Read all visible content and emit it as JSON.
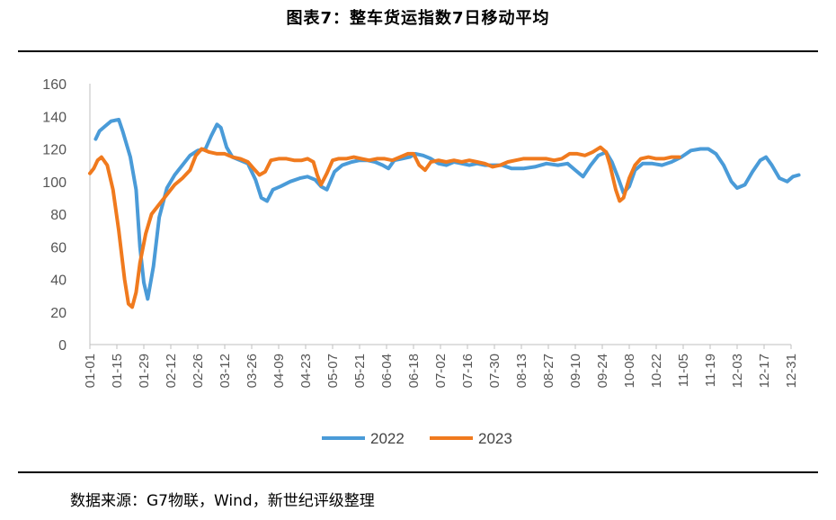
{
  "title": "图表7：整车货运指数7日移动平均",
  "source": "数据来源：G7物联，Wind，新世纪评级整理",
  "colors": {
    "series_2022": "#4A9BD8",
    "series_2023": "#F07A1E",
    "axis": "#BFBFBF",
    "text": "#595959"
  },
  "chart_data": {
    "type": "line",
    "ylim": [
      0,
      160
    ],
    "yticks": [
      0,
      20,
      40,
      60,
      80,
      100,
      120,
      140,
      160
    ],
    "xlim": [
      1,
      365
    ],
    "xlabels": [
      {
        "label": "01-01",
        "day": 1
      },
      {
        "label": "01-15",
        "day": 15
      },
      {
        "label": "01-29",
        "day": 29
      },
      {
        "label": "02-12",
        "day": 43
      },
      {
        "label": "02-26",
        "day": 57
      },
      {
        "label": "03-12",
        "day": 71
      },
      {
        "label": "03-26",
        "day": 85
      },
      {
        "label": "04-09",
        "day": 99
      },
      {
        "label": "04-23",
        "day": 113
      },
      {
        "label": "05-07",
        "day": 127
      },
      {
        "label": "05-21",
        "day": 141
      },
      {
        "label": "06-04",
        "day": 155
      },
      {
        "label": "06-18",
        "day": 169
      },
      {
        "label": "07-02",
        "day": 183
      },
      {
        "label": "07-16",
        "day": 197
      },
      {
        "label": "07-30",
        "day": 211
      },
      {
        "label": "08-13",
        "day": 225
      },
      {
        "label": "08-27",
        "day": 239
      },
      {
        "label": "09-10",
        "day": 253
      },
      {
        "label": "09-24",
        "day": 267
      },
      {
        "label": "10-08",
        "day": 281
      },
      {
        "label": "10-22",
        "day": 295
      },
      {
        "label": "11-05",
        "day": 309
      },
      {
        "label": "11-19",
        "day": 323
      },
      {
        "label": "12-03",
        "day": 337
      },
      {
        "label": "12-17",
        "day": 351
      },
      {
        "label": "12-31",
        "day": 365
      }
    ],
    "x_unit": "day of year",
    "legend_position": "bottom",
    "series": [
      {
        "name": "2022",
        "points": [
          [
            4,
            126
          ],
          [
            6,
            131
          ],
          [
            9,
            134
          ],
          [
            12,
            137
          ],
          [
            16,
            138
          ],
          [
            18,
            131
          ],
          [
            22,
            115
          ],
          [
            25,
            95
          ],
          [
            27,
            60
          ],
          [
            29,
            38
          ],
          [
            31,
            28
          ],
          [
            34,
            48
          ],
          [
            37,
            78
          ],
          [
            41,
            96
          ],
          [
            45,
            104
          ],
          [
            49,
            110
          ],
          [
            53,
            116
          ],
          [
            57,
            119
          ],
          [
            61,
            120
          ],
          [
            64,
            128
          ],
          [
            67,
            135
          ],
          [
            69,
            133
          ],
          [
            72,
            121
          ],
          [
            75,
            115
          ],
          [
            79,
            113
          ],
          [
            83,
            111
          ],
          [
            87,
            101
          ],
          [
            90,
            90
          ],
          [
            93,
            88
          ],
          [
            96,
            95
          ],
          [
            100,
            97
          ],
          [
            105,
            100
          ],
          [
            110,
            102
          ],
          [
            114,
            103
          ],
          [
            118,
            101
          ],
          [
            121,
            97
          ],
          [
            124,
            95
          ],
          [
            128,
            106
          ],
          [
            132,
            110
          ],
          [
            137,
            112
          ],
          [
            141,
            113
          ],
          [
            145,
            113
          ],
          [
            149,
            112
          ],
          [
            153,
            110
          ],
          [
            156,
            108
          ],
          [
            159,
            113
          ],
          [
            163,
            114
          ],
          [
            167,
            115
          ],
          [
            170,
            117
          ],
          [
            174,
            116
          ],
          [
            178,
            114
          ],
          [
            182,
            111
          ],
          [
            186,
            110
          ],
          [
            190,
            112
          ],
          [
            194,
            111
          ],
          [
            198,
            110
          ],
          [
            202,
            111
          ],
          [
            206,
            110
          ],
          [
            210,
            110
          ],
          [
            215,
            110
          ],
          [
            220,
            108
          ],
          [
            226,
            108
          ],
          [
            232,
            109
          ],
          [
            238,
            111
          ],
          [
            244,
            110
          ],
          [
            249,
            111
          ],
          [
            253,
            107
          ],
          [
            257,
            103
          ],
          [
            261,
            110
          ],
          [
            265,
            116
          ],
          [
            269,
            118
          ],
          [
            272,
            112
          ],
          [
            275,
            103
          ],
          [
            278,
            93
          ],
          [
            281,
            97
          ],
          [
            284,
            107
          ],
          [
            288,
            111
          ],
          [
            293,
            111
          ],
          [
            298,
            110
          ],
          [
            303,
            112
          ],
          [
            308,
            115
          ],
          [
            313,
            119
          ],
          [
            318,
            120
          ],
          [
            322,
            120
          ],
          [
            326,
            117
          ],
          [
            330,
            110
          ],
          [
            334,
            100
          ],
          [
            337,
            96
          ],
          [
            341,
            98
          ],
          [
            345,
            106
          ],
          [
            349,
            113
          ],
          [
            352,
            115
          ],
          [
            355,
            110
          ],
          [
            359,
            102
          ],
          [
            363,
            100
          ],
          [
            366,
            103
          ],
          [
            369,
            104
          ]
        ]
      },
      {
        "name": "2023",
        "points": [
          [
            1,
            105
          ],
          [
            3,
            108
          ],
          [
            5,
            113
          ],
          [
            7,
            115
          ],
          [
            10,
            110
          ],
          [
            13,
            95
          ],
          [
            16,
            70
          ],
          [
            19,
            40
          ],
          [
            21,
            25
          ],
          [
            23,
            23
          ],
          [
            25,
            32
          ],
          [
            27,
            50
          ],
          [
            30,
            68
          ],
          [
            33,
            80
          ],
          [
            37,
            86
          ],
          [
            41,
            92
          ],
          [
            45,
            98
          ],
          [
            49,
            102
          ],
          [
            53,
            107
          ],
          [
            56,
            116
          ],
          [
            59,
            120
          ],
          [
            63,
            118
          ],
          [
            67,
            117
          ],
          [
            71,
            117
          ],
          [
            75,
            115
          ],
          [
            79,
            114
          ],
          [
            83,
            112
          ],
          [
            86,
            108
          ],
          [
            89,
            104
          ],
          [
            92,
            106
          ],
          [
            95,
            113
          ],
          [
            99,
            114
          ],
          [
            103,
            114
          ],
          [
            107,
            113
          ],
          [
            111,
            113
          ],
          [
            114,
            114
          ],
          [
            117,
            112
          ],
          [
            119,
            104
          ],
          [
            121,
            98
          ],
          [
            124,
            105
          ],
          [
            127,
            113
          ],
          [
            130,
            114
          ],
          [
            134,
            114
          ],
          [
            138,
            115
          ],
          [
            142,
            114
          ],
          [
            146,
            113
          ],
          [
            150,
            114
          ],
          [
            154,
            114
          ],
          [
            158,
            113
          ],
          [
            162,
            115
          ],
          [
            166,
            117
          ],
          [
            169,
            117
          ],
          [
            172,
            110
          ],
          [
            175,
            107
          ],
          [
            178,
            112
          ],
          [
            182,
            113
          ],
          [
            186,
            112
          ],
          [
            190,
            113
          ],
          [
            194,
            112
          ],
          [
            198,
            113
          ],
          [
            202,
            112
          ],
          [
            206,
            111
          ],
          [
            210,
            109
          ],
          [
            214,
            110
          ],
          [
            218,
            112
          ],
          [
            222,
            113
          ],
          [
            226,
            114
          ],
          [
            230,
            114
          ],
          [
            234,
            114
          ],
          [
            238,
            114
          ],
          [
            242,
            113
          ],
          [
            246,
            114
          ],
          [
            250,
            117
          ],
          [
            254,
            117
          ],
          [
            258,
            116
          ],
          [
            262,
            118
          ],
          [
            266,
            121
          ],
          [
            269,
            118
          ],
          [
            271,
            110
          ],
          [
            274,
            95
          ],
          [
            276,
            88
          ],
          [
            278,
            90
          ],
          [
            281,
            102
          ],
          [
            284,
            110
          ],
          [
            287,
            114
          ],
          [
            291,
            115
          ],
          [
            295,
            114
          ],
          [
            299,
            114
          ],
          [
            303,
            115
          ],
          [
            307,
            115
          ]
        ]
      }
    ]
  }
}
